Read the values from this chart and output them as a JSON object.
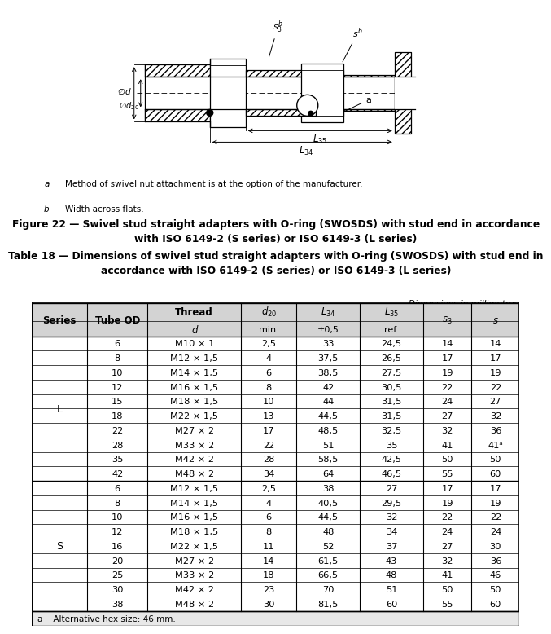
{
  "figure_caption": "Figure 22 — Swivel stud straight adapters with O-ring (SWOSDS) with stud end in accordance\nwith ISO 6149-2 (S series) or ISO 6149-3 (L series)",
  "table_caption": "Table 18 — Dimensions of swivel stud straight adapters with O-ring (SWOSDS) with stud end in\naccordance with ISO 6149-2 (S series) or ISO 6149-3 (L series)",
  "dim_note": "Dimensions in millimetres",
  "footnote_a_text": "Method of swivel nut attachment is at the option of the manufacturer.",
  "footnote_b_text": "Width across flats.",
  "table_footnote": "a    Alternative hex size: 46 mm.",
  "L_rows": [
    [
      "6",
      "M10 × 1",
      "2,5",
      "33",
      "24,5",
      "14",
      "14"
    ],
    [
      "8",
      "M12 × 1,5",
      "4",
      "37,5",
      "26,5",
      "17",
      "17"
    ],
    [
      "10",
      "M14 × 1,5",
      "6",
      "38,5",
      "27,5",
      "19",
      "19"
    ],
    [
      "12",
      "M16 × 1,5",
      "8",
      "42",
      "30,5",
      "22",
      "22"
    ],
    [
      "15",
      "M18 × 1,5",
      "10",
      "44",
      "31,5",
      "24",
      "27"
    ],
    [
      "18",
      "M22 × 1,5",
      "13",
      "44,5",
      "31,5",
      "27",
      "32"
    ],
    [
      "22",
      "M27 × 2",
      "17",
      "48,5",
      "32,5",
      "32",
      "36"
    ],
    [
      "28",
      "M33 × 2",
      "22",
      "51",
      "35",
      "41",
      "41ᵃ"
    ],
    [
      "35",
      "M42 × 2",
      "28",
      "58,5",
      "42,5",
      "50",
      "50"
    ],
    [
      "42",
      "M48 × 2",
      "34",
      "64",
      "46,5",
      "55",
      "60"
    ]
  ],
  "S_rows": [
    [
      "6",
      "M12 × 1,5",
      "2,5",
      "38",
      "27",
      "17",
      "17"
    ],
    [
      "8",
      "M14 × 1,5",
      "4",
      "40,5",
      "29,5",
      "19",
      "19"
    ],
    [
      "10",
      "M16 × 1,5",
      "6",
      "44,5",
      "32",
      "22",
      "22"
    ],
    [
      "12",
      "M18 × 1,5",
      "8",
      "48",
      "34",
      "24",
      "24"
    ],
    [
      "16",
      "M22 × 1,5",
      "11",
      "52",
      "37",
      "27",
      "30"
    ],
    [
      "20",
      "M27 × 2",
      "14",
      "61,5",
      "43",
      "32",
      "36"
    ],
    [
      "25",
      "M33 × 2",
      "18",
      "66,5",
      "48",
      "41",
      "46"
    ],
    [
      "30",
      "M42 × 2",
      "23",
      "70",
      "51",
      "50",
      "50"
    ],
    [
      "38",
      "M48 × 2",
      "30",
      "81,5",
      "60",
      "55",
      "60"
    ]
  ],
  "bg_color": "#ffffff"
}
